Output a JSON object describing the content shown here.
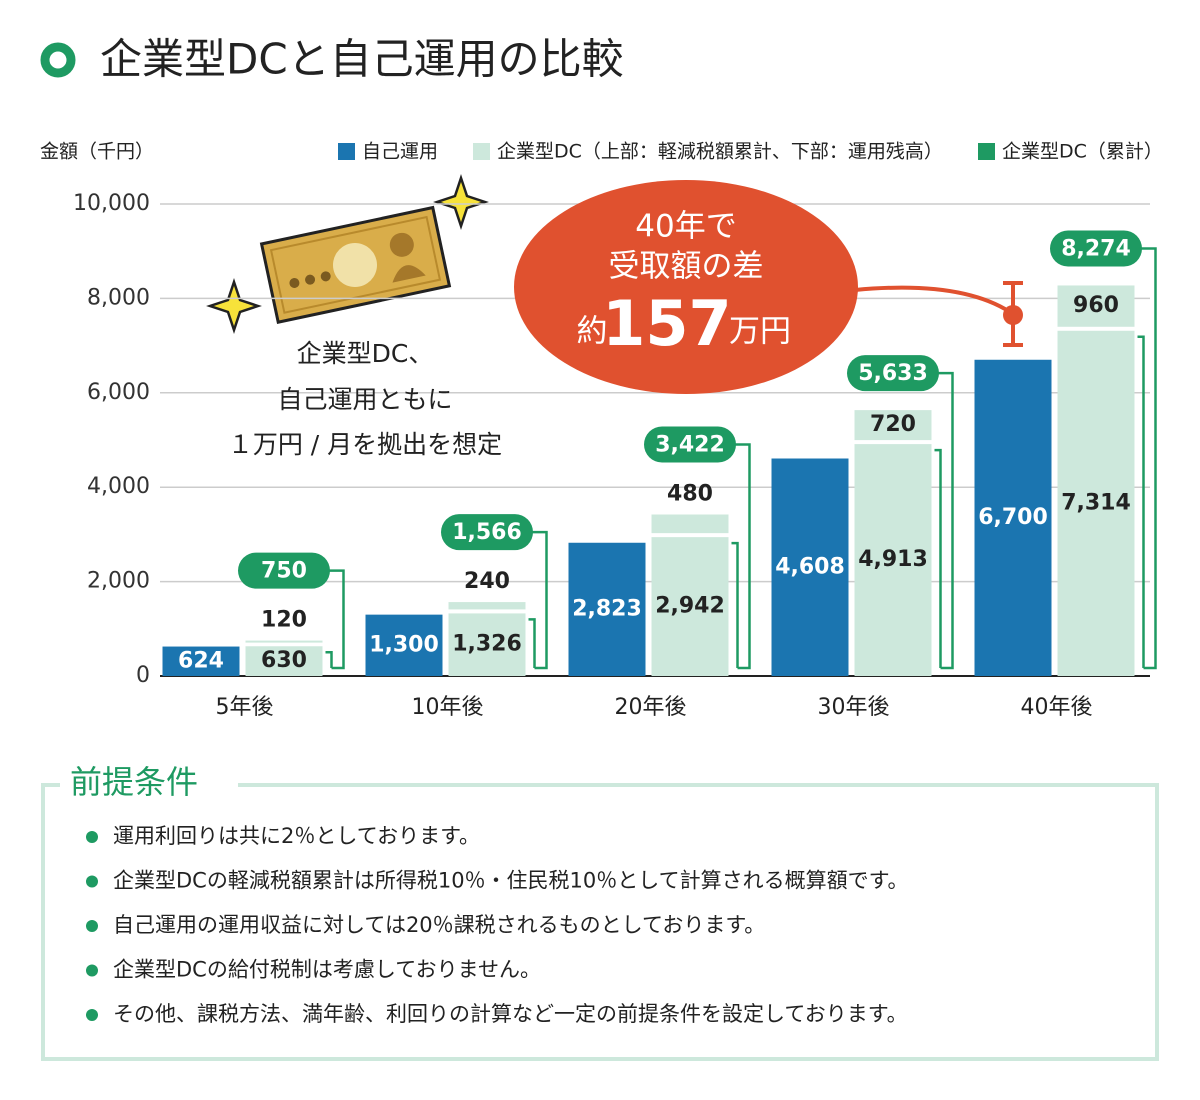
{
  "chart_data": {
    "type": "bar",
    "title": "企業型DCと自己運用の比較",
    "y_label": "金額（千円）",
    "categories": [
      "5年後",
      "10年後",
      "20年後",
      "30年後",
      "40年後"
    ],
    "series": [
      {
        "name": "自己運用",
        "color": "#1b75b0",
        "values": [
          624,
          1300,
          2823,
          4608,
          6700
        ],
        "value_labels": [
          "624",
          "1,300",
          "2,823",
          "4,608",
          "6,700"
        ]
      },
      {
        "name": "企業型DC（上部：軽減税額累計、下部：運用残高）",
        "color": "#cde8dc",
        "segments": [
          {
            "values": [
              630,
              1326,
              2942,
              4913,
              7314
            ],
            "value_labels": [
              "630",
              "1,326",
              "2,942",
              "4,913",
              "7,314"
            ]
          },
          {
            "values": [
              120,
              240,
              480,
              720,
              960
            ]
          }
        ]
      },
      {
        "name": "企業型DC（累計）",
        "color": "#1e9a62",
        "values": [
          750,
          1566,
          3422,
          5633,
          8274
        ],
        "value_labels": [
          "750",
          "1,566",
          "3,422",
          "5,633",
          "8,274"
        ]
      }
    ],
    "ylim": [
      0,
      10000
    ],
    "yticks": [
      0,
      {
        "value": 2000,
        "label": "2,000"
      },
      {
        "value": 4000,
        "label": "4,000"
      },
      {
        "value": 6000,
        "label": "6,000"
      },
      {
        "value": 8000,
        "label": "8,000"
      },
      {
        "value": 10000,
        "label": "10,000"
      }
    ],
    "grid": true,
    "annotations": {
      "bubble_lines": [
        "40年で",
        "受取額の差"
      ],
      "bubble_prefix": "約",
      "bubble_number": 157,
      "bubble_unit": "万円",
      "note_lines": [
        "企業型DC、",
        "自己運用ともに",
        "１万円 / 月を拠出を想定"
      ]
    }
  },
  "conditions": {
    "title": "前提条件",
    "items": [
      "運用利回りは共に2％としております。",
      "企業型DCの軽減税額累計は所得税10％・住民税10％として計算される概算額です。",
      "自己運用の運用収益に対しては20％課税されるものとしております。",
      "企業型DCの給付税制は考慮しておりません。",
      "その他、課税方法、満年齢、利回りの計算など一定の前提条件を設定しております。"
    ]
  }
}
